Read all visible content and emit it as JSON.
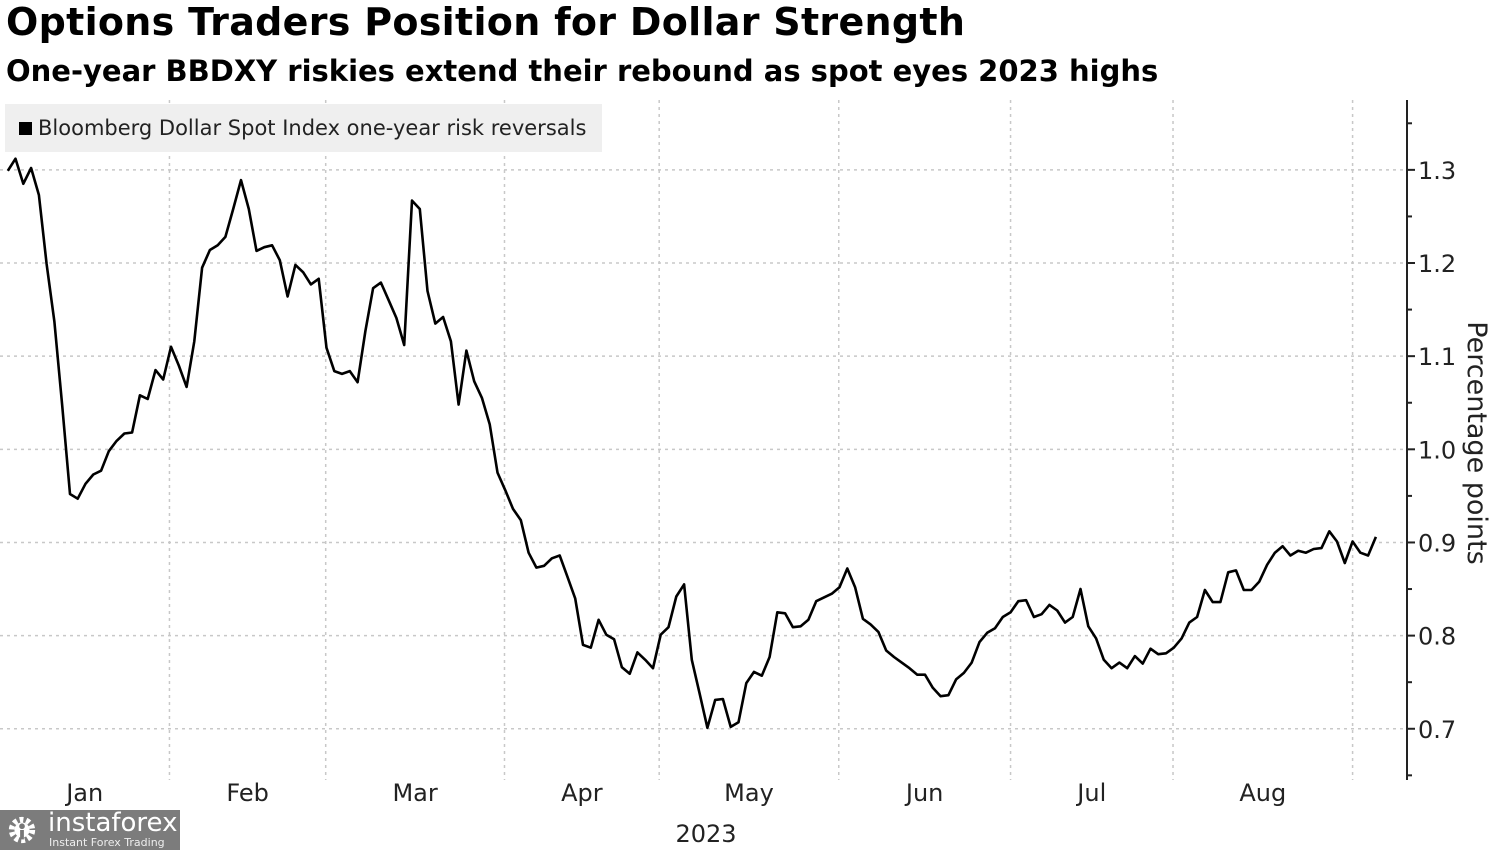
{
  "chart_data": {
    "type": "line",
    "title": "Options Traders Position for Dollar Strength",
    "subtitle": "One-year BBDXY riskies extend their rebound as spot eyes 2023 highs",
    "xlabel": "2023",
    "ylabel": "Percentage points",
    "x_unit": "trading-day index from start of series",
    "xlim": [
      -1,
      180
    ],
    "ylim": [
      0.645,
      1.375
    ],
    "y_ticks": [
      0.7,
      0.8,
      0.9,
      1.0,
      1.1,
      1.2,
      1.3
    ],
    "y_tick_labels": [
      "0.7",
      "0.8",
      "0.9",
      "1.0",
      "1.1",
      "1.2",
      "1.3"
    ],
    "y_minor_ticks": [
      0.65,
      0.75,
      0.85,
      0.95,
      1.05,
      1.15,
      1.25,
      1.35
    ],
    "month_boundaries": [
      20.8,
      40.9,
      63.9,
      83.8,
      106.9,
      129.0,
      149.9,
      173.0
    ],
    "month_labels": [
      "Jan",
      "Feb",
      "Mar",
      "Apr",
      "May",
      "Jun",
      "Jul",
      "Aug"
    ],
    "grid": true,
    "legend_position": "top-left",
    "series": [
      {
        "name": "Bloomberg Dollar Spot Index one-year risk reversals",
        "color": "#000000",
        "values": [
          1.299,
          1.312,
          1.285,
          1.302,
          1.273,
          1.199,
          1.137,
          1.047,
          0.952,
          0.947,
          0.963,
          0.973,
          0.977,
          0.998,
          1.009,
          1.017,
          1.018,
          1.058,
          1.054,
          1.085,
          1.075,
          1.11,
          1.09,
          1.067,
          1.116,
          1.195,
          1.214,
          1.219,
          1.228,
          1.258,
          1.289,
          1.258,
          1.213,
          1.217,
          1.219,
          1.203,
          1.164,
          1.198,
          1.19,
          1.177,
          1.183,
          1.109,
          1.084,
          1.081,
          1.084,
          1.072,
          1.127,
          1.173,
          1.179,
          1.16,
          1.141,
          1.112,
          1.267,
          1.258,
          1.17,
          1.135,
          1.142,
          1.116,
          1.048,
          1.106,
          1.073,
          1.055,
          1.027,
          0.975,
          0.956,
          0.936,
          0.924,
          0.889,
          0.873,
          0.875,
          0.883,
          0.886,
          0.863,
          0.84,
          0.79,
          0.787,
          0.817,
          0.801,
          0.796,
          0.766,
          0.759,
          0.782,
          0.774,
          0.765,
          0.801,
          0.809,
          0.842,
          0.855,
          0.774,
          0.738,
          0.701,
          0.731,
          0.732,
          0.702,
          0.707,
          0.749,
          0.761,
          0.757,
          0.777,
          0.825,
          0.824,
          0.809,
          0.81,
          0.817,
          0.837,
          0.841,
          0.845,
          0.852,
          0.872,
          0.852,
          0.818,
          0.812,
          0.804,
          0.784,
          0.777,
          0.771,
          0.765,
          0.758,
          0.758,
          0.744,
          0.735,
          0.736,
          0.753,
          0.76,
          0.771,
          0.793,
          0.803,
          0.808,
          0.82,
          0.825,
          0.837,
          0.838,
          0.82,
          0.823,
          0.833,
          0.827,
          0.814,
          0.82,
          0.85,
          0.81,
          0.797,
          0.774,
          0.765,
          0.771,
          0.765,
          0.778,
          0.77,
          0.786,
          0.78,
          0.781,
          0.787,
          0.797,
          0.814,
          0.82,
          0.849,
          0.836,
          0.836,
          0.868,
          0.87,
          0.849,
          0.849,
          0.858,
          0.876,
          0.889,
          0.896,
          0.886,
          0.891,
          0.889,
          0.893,
          0.894,
          0.912,
          0.901,
          0.878,
          0.901,
          0.889,
          0.886,
          0.906
        ]
      }
    ]
  },
  "watermark": {
    "name": "instaforex",
    "tagline": "Instant Forex Trading"
  }
}
